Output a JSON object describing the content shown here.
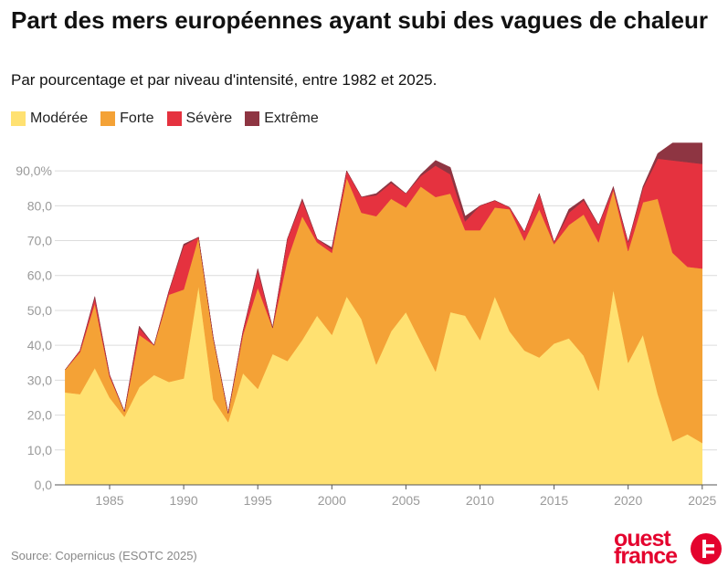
{
  "title": "Part des mers européennes ayant subi des vagues de chaleur",
  "subtitle": "Par pourcentage et par niveau d'intensité, entre 1982 et 2025.",
  "source": "Source: Copernicus (ESOTC 2025)",
  "logo": {
    "line1": "ouest",
    "line2": "france"
  },
  "chart_data": {
    "type": "area",
    "stacked": true,
    "x": [
      1982,
      1983,
      1984,
      1985,
      1986,
      1987,
      1988,
      1989,
      1990,
      1991,
      1992,
      1993,
      1994,
      1995,
      1996,
      1997,
      1998,
      1999,
      2000,
      2001,
      2002,
      2003,
      2004,
      2005,
      2006,
      2007,
      2008,
      2009,
      2010,
      2011,
      2012,
      2013,
      2014,
      2015,
      2016,
      2017,
      2018,
      2019,
      2020,
      2021,
      2022,
      2023,
      2024,
      2025
    ],
    "series": [
      {
        "name": "Modérée",
        "color": "#ffe171",
        "values": [
          26.5,
          26,
          33.5,
          25,
          19.5,
          28,
          31.5,
          29.5,
          30.5,
          57,
          24.5,
          18,
          32,
          27.5,
          37.5,
          35.5,
          41.5,
          48.5,
          43,
          54,
          47.5,
          34.5,
          44,
          49.5,
          41,
          32.5,
          49.5,
          48.5,
          41.5,
          54,
          44,
          38.5,
          36.5,
          40.5,
          42,
          37,
          27,
          56,
          35,
          43,
          26,
          12.5,
          14.5,
          12
        ]
      },
      {
        "name": "Forte",
        "color": "#f4a236",
        "values": [
          6.5,
          12,
          18.5,
          6,
          1.5,
          15,
          8.5,
          25,
          25.5,
          14,
          17.5,
          2.5,
          11,
          29,
          7.5,
          29,
          35.5,
          21,
          23.5,
          34,
          30.5,
          42.5,
          38,
          30,
          44.5,
          50,
          34,
          24.5,
          31.5,
          25.5,
          35,
          31.5,
          42.5,
          28.5,
          32.5,
          40.5,
          42.5,
          28.5,
          32,
          38,
          56,
          54,
          48,
          50
        ]
      },
      {
        "name": "Sévère",
        "color": "#e5323f",
        "values": [
          0,
          0.5,
          1.5,
          0.5,
          0,
          2,
          0,
          1,
          12.5,
          0,
          0,
          0,
          1,
          5,
          0,
          6,
          4.5,
          1,
          1,
          2,
          4.5,
          6,
          4.5,
          4,
          3,
          9,
          5.5,
          2.5,
          7,
          2,
          0.5,
          2.5,
          4.5,
          0.5,
          3.5,
          4,
          5,
          0.5,
          2.5,
          4,
          11.5,
          26.5,
          30,
          30
        ]
      },
      {
        "name": "Extrême",
        "color": "#8e3542",
        "values": [
          0,
          0,
          0.5,
          0,
          0,
          0.5,
          0,
          0,
          0.5,
          0,
          0,
          0,
          0,
          0.5,
          0,
          0,
          0.5,
          0,
          0.5,
          0,
          0,
          0.5,
          0.5,
          0,
          0.5,
          1.5,
          2,
          1.5,
          0,
          0,
          0,
          0,
          0,
          0,
          1,
          0.5,
          0,
          0.5,
          0,
          0.5,
          1.5,
          5,
          5.5,
          6
        ]
      }
    ],
    "xticks": [
      1985,
      1990,
      1995,
      2000,
      2005,
      2010,
      2015,
      2020,
      2025
    ],
    "yticks": [
      0,
      10,
      20,
      30,
      40,
      50,
      60,
      70,
      80,
      90
    ],
    "ytick_labels": [
      "0,0",
      "10,0",
      "20,0",
      "30,0",
      "40,0",
      "50,0",
      "60,0",
      "70,0",
      "80,0",
      "90,0%"
    ],
    "xlim": [
      1981.3,
      2026
    ],
    "ylim": [
      0,
      95
    ],
    "grid": true,
    "legend_position": "top-left"
  }
}
